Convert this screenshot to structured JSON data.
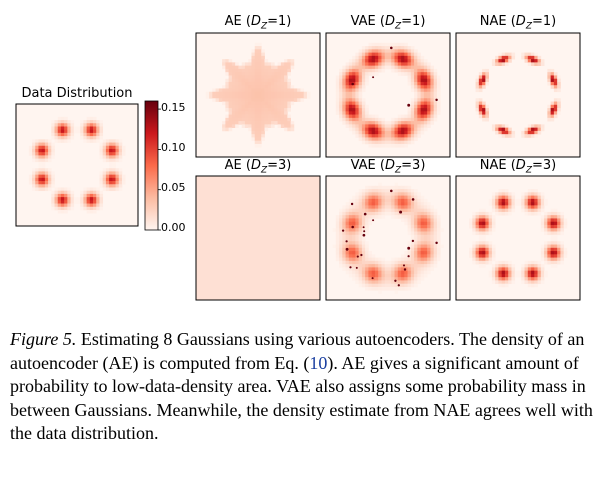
{
  "data_panel": {
    "title": "Data Distribution",
    "n_gaussians": 8,
    "ring_radius": 0.62,
    "spot_sigma": 0.075,
    "peak": 0.16,
    "colormap": [
      "#fff5f0",
      "#fcbba1",
      "#fb6a4a",
      "#cb181d",
      "#67000d"
    ]
  },
  "panels": [
    {
      "title_prefix": "AE (",
      "title_var": "D",
      "title_sub": "Z",
      "title_suffix": "=1)",
      "kind": "ae1"
    },
    {
      "title_prefix": "VAE (",
      "title_var": "D",
      "title_sub": "Z",
      "title_suffix": "=1)",
      "kind": "vae1"
    },
    {
      "title_prefix": "NAE (",
      "title_var": "D",
      "title_sub": "Z",
      "title_suffix": "=1)",
      "kind": "nae1"
    },
    {
      "title_prefix": "AE (",
      "title_var": "D",
      "title_sub": "Z",
      "title_suffix": "=3)",
      "kind": "ae3"
    },
    {
      "title_prefix": "VAE (",
      "title_var": "D",
      "title_sub": "Z",
      "title_suffix": "=3)",
      "kind": "vae3"
    },
    {
      "title_prefix": "NAE (",
      "title_var": "D",
      "title_sub": "Z",
      "title_suffix": "=3)",
      "kind": "nae3"
    }
  ],
  "colorbar": {
    "min": 0.0,
    "max": 0.16,
    "ticks": [
      {
        "value": 0.15,
        "label": "0.15"
      },
      {
        "value": 0.1,
        "label": "0.10"
      },
      {
        "value": 0.05,
        "label": "0.05"
      },
      {
        "value": 0.0,
        "label": "0.00"
      }
    ]
  },
  "caption": {
    "figure_label": "Figure 5.",
    "text_before_ref": " Estimating 8 Gaussians using various autoencoders. The density of an autoencoder (AE) is computed from Eq. (",
    "ref": "10",
    "text_after_ref": "). AE gives a significant amount of probability to low-data-density area. VAE also assigns some probability mass in between Gaussians. Meanwhile, the density estimate from NAE agrees well with the data distribution."
  }
}
